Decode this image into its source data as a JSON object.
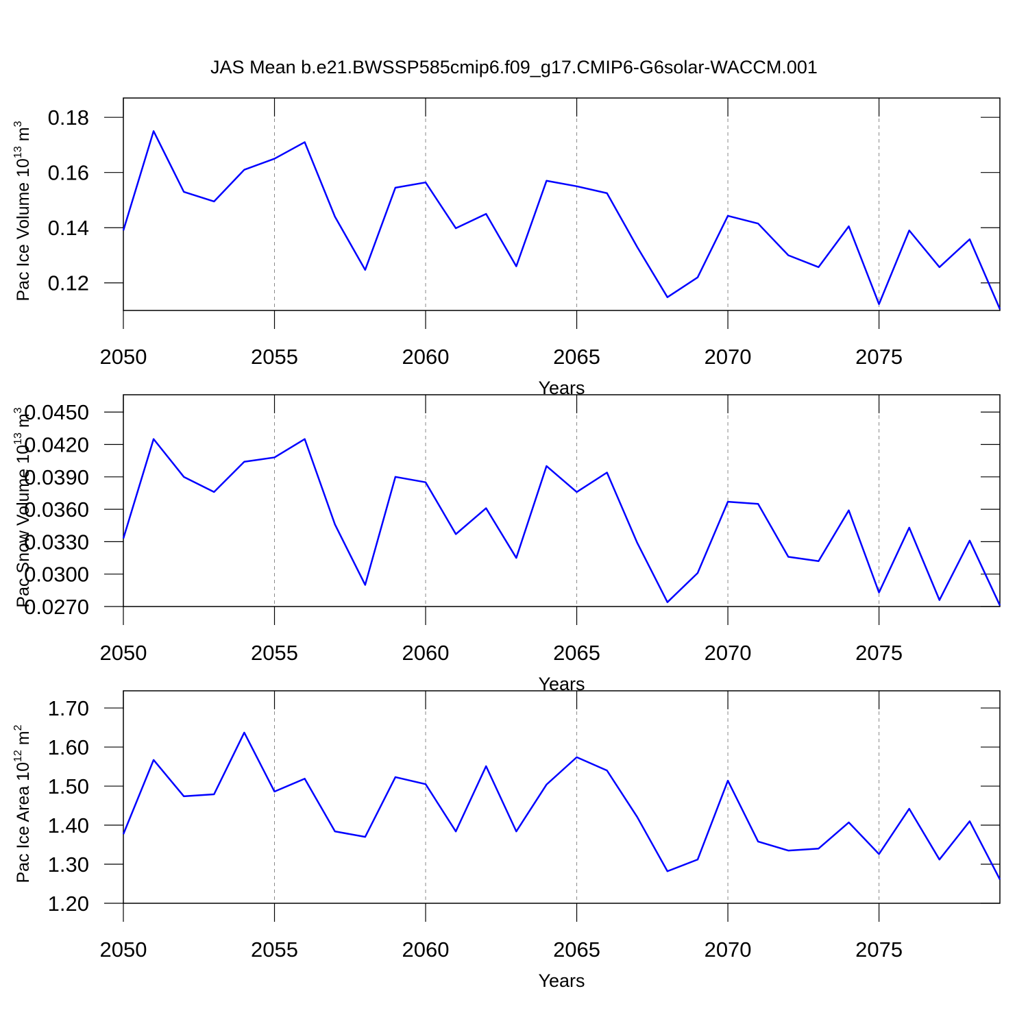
{
  "chart_data": [
    {
      "type": "line",
      "title": "JAS Mean b.e21.BWSSP585cmip6.f09_g17.CMIP6-G6solar-WACCM.001",
      "xlabel": "Years",
      "ylabel": {
        "text": "Pac Ice Volume 10",
        "exponent": "13",
        "unit": "m",
        "unit_exponent": "3"
      },
      "x": [
        2050,
        2051,
        2052,
        2053,
        2054,
        2055,
        2056,
        2057,
        2058,
        2059,
        2060,
        2061,
        2062,
        2063,
        2064,
        2065,
        2066,
        2067,
        2068,
        2069,
        2070,
        2071,
        2072,
        2073,
        2074,
        2075,
        2076,
        2077,
        2078,
        2079
      ],
      "series": [
        {
          "color": "#0000ff",
          "values": [
            0.139,
            0.175,
            0.153,
            0.1495,
            0.161,
            0.165,
            0.171,
            0.144,
            0.1247,
            0.1545,
            0.1564,
            0.1398,
            0.145,
            0.126,
            0.157,
            0.155,
            0.1525,
            0.133,
            0.1148,
            0.122,
            0.1443,
            0.1415,
            0.13,
            0.1257,
            0.1405,
            0.1123,
            0.139,
            0.1257,
            0.1358,
            0.1105
          ]
        }
      ],
      "xlim": [
        2050,
        2079
      ],
      "xticks": [
        2050,
        2055,
        2060,
        2065,
        2070,
        2075
      ],
      "ylim": [
        0.11,
        0.187
      ],
      "yticks": [
        0.12,
        0.14,
        0.16,
        0.18
      ],
      "grid": "x"
    },
    {
      "type": "line",
      "xlabel": "Years",
      "ylabel": {
        "text": "Pac Snow Volume 10",
        "exponent": "13",
        "unit": "m",
        "unit_exponent": "3"
      },
      "x": [
        2050,
        2051,
        2052,
        2053,
        2054,
        2055,
        2056,
        2057,
        2058,
        2059,
        2060,
        2061,
        2062,
        2063,
        2064,
        2065,
        2066,
        2067,
        2068,
        2069,
        2070,
        2071,
        2072,
        2073,
        2074,
        2075,
        2076,
        2077,
        2078,
        2079
      ],
      "series": [
        {
          "color": "#0000ff",
          "values": [
            0.0333,
            0.0425,
            0.039,
            0.0376,
            0.0404,
            0.0408,
            0.0425,
            0.0346,
            0.029,
            0.039,
            0.0385,
            0.0337,
            0.0361,
            0.0315,
            0.04,
            0.0376,
            0.0394,
            0.0329,
            0.0274,
            0.0301,
            0.0367,
            0.0365,
            0.0316,
            0.0312,
            0.0359,
            0.0283,
            0.0343,
            0.0276,
            0.0331,
            0.0271
          ]
        }
      ],
      "xlim": [
        2050,
        2079
      ],
      "xticks": [
        2050,
        2055,
        2060,
        2065,
        2070,
        2075
      ],
      "ylim": [
        0.027,
        0.0466
      ],
      "yticks": [
        {
          "value": 0.027,
          "label": "0.0270"
        },
        {
          "value": 0.03,
          "label": "0.0300"
        },
        {
          "value": 0.033,
          "label": "0.0330"
        },
        {
          "value": 0.036,
          "label": "0.0360"
        },
        {
          "value": 0.039,
          "label": "0.0390"
        },
        {
          "value": 0.042,
          "label": "0.0420"
        },
        {
          "value": 0.045,
          "label": "0.0450"
        }
      ],
      "grid": "x"
    },
    {
      "type": "line",
      "xlabel": "Years",
      "ylabel": {
        "text": "Pac Ice Area 10",
        "exponent": "12",
        "unit": "m",
        "unit_exponent": "2"
      },
      "x": [
        2050,
        2051,
        2052,
        2053,
        2054,
        2055,
        2056,
        2057,
        2058,
        2059,
        2060,
        2061,
        2062,
        2063,
        2064,
        2065,
        2066,
        2067,
        2068,
        2069,
        2070,
        2071,
        2072,
        2073,
        2074,
        2075,
        2076,
        2077,
        2078,
        2079
      ],
      "series": [
        {
          "color": "#0000ff",
          "values": [
            1.377,
            1.567,
            1.474,
            1.479,
            1.637,
            1.486,
            1.519,
            1.384,
            1.37,
            1.523,
            1.505,
            1.384,
            1.551,
            1.384,
            1.504,
            1.574,
            1.54,
            1.421,
            1.282,
            1.312,
            1.514,
            1.358,
            1.335,
            1.34,
            1.407,
            1.326,
            1.442,
            1.312,
            1.41,
            1.261
          ]
        }
      ],
      "xlim": [
        2050,
        2079
      ],
      "xticks": [
        2050,
        2055,
        2060,
        2065,
        2070,
        2075
      ],
      "ylim": [
        1.2,
        1.744
      ],
      "yticks": [
        {
          "value": 1.2,
          "label": "1.20"
        },
        {
          "value": 1.3,
          "label": "1.30"
        },
        {
          "value": 1.4,
          "label": "1.40"
        },
        {
          "value": 1.5,
          "label": "1.50"
        },
        {
          "value": 1.6,
          "label": "1.60"
        },
        {
          "value": 1.7,
          "label": "1.70"
        }
      ],
      "grid": "x"
    }
  ]
}
